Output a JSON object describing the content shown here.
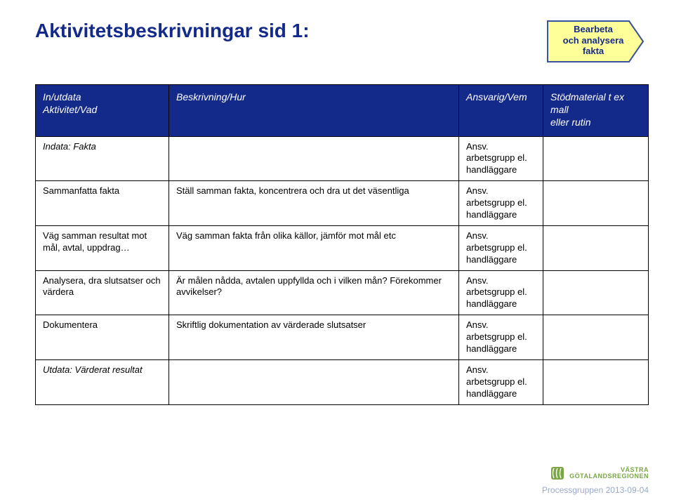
{
  "title": "Aktivitetsbeskrivningar sid 1:",
  "chevron": {
    "line1": "Bearbeta",
    "line2": "och analysera",
    "line3": "fakta",
    "fill": "#ffff99",
    "stroke": "#3a529a"
  },
  "table": {
    "headers": {
      "c1a": "In/utdata",
      "c1b": "Aktivitet/Vad",
      "c2": "Beskrivning/Hur",
      "c3": "Ansvarig/Vem",
      "c4a": "Stödmaterial t ex mall",
      "c4b": "eller rutin"
    },
    "responsible": "Ansv.\narbetsgrupp el.\nhandläggare",
    "rows": [
      {
        "c1": "Indata: Fakta",
        "c1_italic": true,
        "c2": ""
      },
      {
        "c1": "Sammanfatta fakta",
        "c2": "Ställ samman fakta, koncentrera och dra ut det väsentliga"
      },
      {
        "c1": "Väg samman resultat mot mål, avtal, uppdrag…",
        "c2": "Väg samman fakta från olika källor, jämför mot mål etc"
      },
      {
        "c1": "Analysera, dra slutsatser och värdera",
        "c2": "Är målen nådda, avtalen uppfyllda och i vilken mån? Förekommer avvikelser?"
      },
      {
        "c1": "Dokumentera",
        "c2": "Skriftlig dokumentation av värderade slutsatser"
      },
      {
        "c1": "Utdata: Värderat resultat",
        "c1_italic": true,
        "c2": ""
      }
    ]
  },
  "footer": {
    "logo_line1": "VÄSTRA",
    "logo_line2": "GÖTALANDSREGIONEN",
    "note": "Processgruppen 2013-09-04",
    "logo_color": "#7aa644"
  },
  "colors": {
    "header_bg": "#142a8a",
    "title": "#142a8a"
  }
}
